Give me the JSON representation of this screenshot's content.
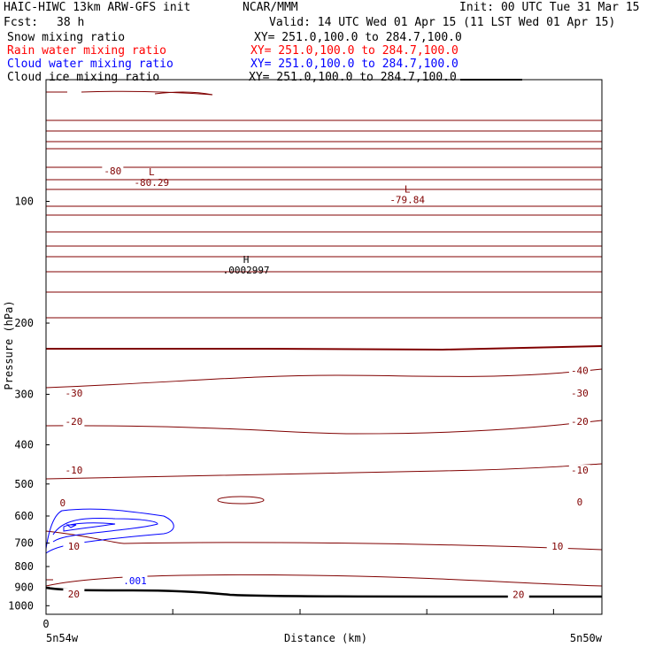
{
  "header": {
    "title": "HAIC-HIWC 13km ARW-GFS init",
    "center": "NCAR/MMM",
    "init": "Init: 00 UTC Tue 31 Mar 15",
    "fcst_label": "Fcst:",
    "fcst_value": "38 h",
    "valid": "Valid: 14 UTC Wed 01 Apr 15 (11 LST Wed 01 Apr 15)"
  },
  "fields": [
    {
      "name": "Snow mixing ratio",
      "xy": "XY= 251.0,100.0 to 284.7,100.0",
      "color": "#000000"
    },
    {
      "name": "Rain water mixing ratio",
      "xy": "XY= 251.0,100.0 to 284.7,100.0",
      "color": "#ff0000"
    },
    {
      "name": "Cloud water mixing ratio",
      "xy": "XY= 251.0,100.0 to 284.7,100.0",
      "color": "#0000ff"
    },
    {
      "name": "Cloud ice mixing ratio",
      "xy": "XY= 251.0,100.0 to 284.7,100.0",
      "color": "#000000"
    }
  ],
  "chart_data": {
    "type": "line",
    "xlabel": "Distance (km)",
    "ylabel": "Pressure (hPa)",
    "x_tick_label": "0",
    "x_left_label": "5n54w",
    "x_right_label": "5n50w",
    "y_ticks": [
      100,
      200,
      300,
      400,
      500,
      600,
      700,
      800,
      900,
      1000
    ],
    "y_range": [
      1050,
      50
    ],
    "y_scale": "log",
    "temperature_color": "#800000",
    "cloud_water_color": "#0000ff",
    "terrain_color": "#000000",
    "isotherm_labels": [
      {
        "text": "-80",
        "x": 0.12,
        "p": 84
      },
      {
        "text": "-40",
        "x": 0.96,
        "p": 262
      },
      {
        "text": "-30",
        "x": 0.05,
        "p": 298
      },
      {
        "text": "-30",
        "x": 0.96,
        "p": 298
      },
      {
        "text": "-20",
        "x": 0.05,
        "p": 350
      },
      {
        "text": "-20",
        "x": 0.96,
        "p": 350
      },
      {
        "text": "-10",
        "x": 0.05,
        "p": 462
      },
      {
        "text": "-10",
        "x": 0.96,
        "p": 462
      },
      {
        "text": "0",
        "x": 0.03,
        "p": 556
      },
      {
        "text": "0",
        "x": 0.96,
        "p": 553
      },
      {
        "text": "10",
        "x": 0.05,
        "p": 712
      },
      {
        "text": "10",
        "x": 0.92,
        "p": 712
      },
      {
        "text": "20",
        "x": 0.05,
        "p": 934
      },
      {
        "text": "20",
        "x": 0.85,
        "p": 938
      }
    ],
    "extrema": [
      {
        "marker": "L",
        "value": "-80.29",
        "x": 0.19,
        "p": 88
      },
      {
        "marker": "L",
        "value": "-79.84",
        "x": 0.65,
        "p": 97
      },
      {
        "marker": "H",
        "value": ".0002997",
        "x": 0.36,
        "p": 145
      }
    ],
    "cloud_water_labels": [
      {
        "text": ".001",
        "x": 0.16,
        "p": 868
      }
    ]
  }
}
